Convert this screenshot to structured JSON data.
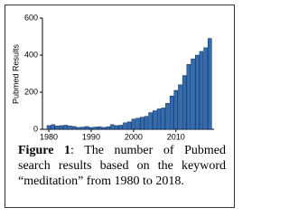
{
  "chart_data": {
    "type": "bar",
    "y_label": "Pubmed Results",
    "x": [
      1980,
      1981,
      1982,
      1983,
      1984,
      1985,
      1986,
      1987,
      1988,
      1989,
      1990,
      1991,
      1992,
      1993,
      1994,
      1995,
      1996,
      1997,
      1998,
      1999,
      2000,
      2001,
      2002,
      2003,
      2004,
      2005,
      2006,
      2007,
      2008,
      2009,
      2010,
      2011,
      2012,
      2013,
      2014,
      2015,
      2016,
      2017,
      2018
    ],
    "values": [
      20,
      25,
      18,
      20,
      22,
      18,
      15,
      10,
      12,
      15,
      10,
      12,
      14,
      10,
      14,
      25,
      20,
      22,
      35,
      40,
      55,
      60,
      65,
      70,
      90,
      100,
      110,
      115,
      140,
      180,
      210,
      240,
      290,
      350,
      380,
      400,
      420,
      440,
      490
    ],
    "color": "#2f6db5",
    "xlim": [
      1978.5,
      2019
    ],
    "xticks": [
      1980,
      1990,
      2000,
      2010
    ],
    "ylim": [
      0,
      600
    ],
    "yticks": [
      0,
      200,
      400,
      600
    ]
  },
  "caption": {
    "label": "Figure 1",
    "lines": [
      ": The number of Pubmed",
      "search results based on the keyword",
      "“meditation” from 1980 to 2018."
    ]
  }
}
